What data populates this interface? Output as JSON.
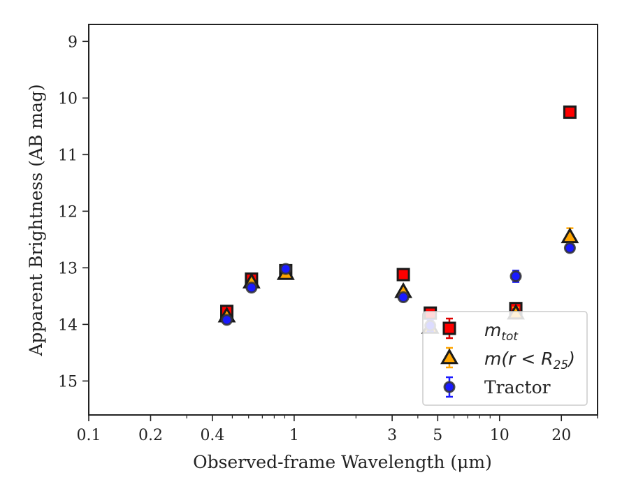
{
  "chart_data": {
    "type": "scatter",
    "xscale": "log",
    "yinverted": true,
    "xlabel": "Observed-frame Wavelength (μm)",
    "ylabel": "Apparent Brightness (AB mag)",
    "xlim": [
      0.1,
      30
    ],
    "ylim": [
      15.6,
      8.7
    ],
    "xticks": [
      {
        "value": 0.1,
        "label": "0.1"
      },
      {
        "value": 0.2,
        "label": "0.2"
      },
      {
        "value": 0.4,
        "label": "0.4"
      },
      {
        "value": 1,
        "label": "1"
      },
      {
        "value": 3,
        "label": "3"
      },
      {
        "value": 5,
        "label": "5"
      },
      {
        "value": 10,
        "label": "10"
      },
      {
        "value": 20,
        "label": "20"
      }
    ],
    "yticks": [
      {
        "value": 9,
        "label": "9"
      },
      {
        "value": 10,
        "label": "10"
      },
      {
        "value": 11,
        "label": "11"
      },
      {
        "value": 12,
        "label": "12"
      },
      {
        "value": 13,
        "label": "13"
      },
      {
        "value": 14,
        "label": "14"
      },
      {
        "value": 15,
        "label": "15"
      }
    ],
    "grid": false,
    "legend_position": "lower-right",
    "series": [
      {
        "name": "m_tot",
        "legend_main": "m",
        "legend_sub": "tot",
        "marker": "square",
        "color": "#ff0000",
        "errcolor": "#dd0000",
        "x": [
          0.47,
          0.62,
          0.91,
          3.4,
          4.6,
          12.0,
          22.0
        ],
        "y": [
          13.77,
          13.2,
          13.05,
          13.12,
          13.8,
          13.72,
          10.25
        ],
        "yerr": [
          0.04,
          0.03,
          0.03,
          0.04,
          0.05,
          0.06,
          0.05
        ]
      },
      {
        "name": "m(r < R25)",
        "legend_main": "m(r < R",
        "legend_sub": "25",
        "legend_end": ")",
        "marker": "triangle",
        "color": "#ffa500",
        "errcolor": "#ffa500",
        "x": [
          0.47,
          0.62,
          0.91,
          3.4,
          4.6,
          12.0,
          22.0
        ],
        "y": [
          13.85,
          13.25,
          13.1,
          13.42,
          14.05,
          13.8,
          12.45
        ],
        "yerr": [
          0.04,
          0.04,
          0.05,
          0.05,
          0.08,
          0.1,
          0.15
        ]
      },
      {
        "name": "Tractor",
        "legend_main": "Tractor",
        "marker": "circle",
        "color": "#1a1aff",
        "errcolor": "#1a1aff",
        "x": [
          0.47,
          0.62,
          0.91,
          3.4,
          4.6,
          12.0,
          22.0
        ],
        "y": [
          13.92,
          13.35,
          13.02,
          13.52,
          14.02,
          13.15,
          12.65
        ],
        "yerr": [
          0.04,
          0.04,
          0.06,
          0.05,
          0.1,
          0.1,
          0.06
        ]
      }
    ]
  }
}
